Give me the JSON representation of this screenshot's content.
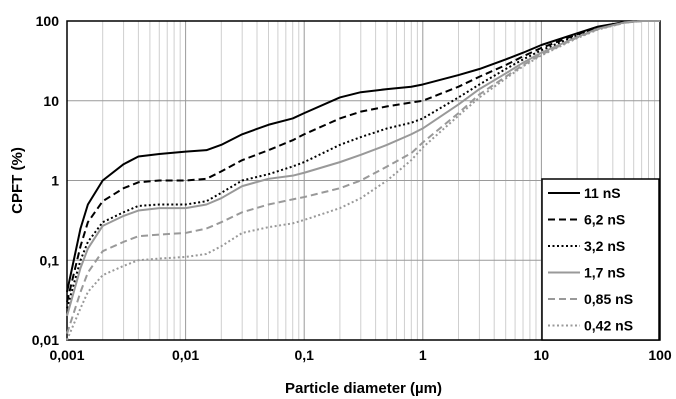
{
  "chart_data": {
    "type": "line",
    "xlabel": "Particle diameter (µm)",
    "ylabel": "CPFT (%)",
    "x_scale": "log",
    "y_scale": "log",
    "xlim": [
      0.001,
      100
    ],
    "ylim": [
      0.01,
      100
    ],
    "x_ticks": [
      "0,001",
      "0,01",
      "0,1",
      "1",
      "10",
      "100"
    ],
    "y_ticks": [
      "0,01",
      "0,1",
      "1",
      "10",
      "100"
    ],
    "grid": "vertical minor and major lines, horizontal major lines",
    "legend_position": "bottom-right",
    "series": [
      {
        "name": "11 nS",
        "color": "#000000",
        "dash": "solid",
        "points": [
          [
            0.001,
            0.04
          ],
          [
            0.0013,
            0.25
          ],
          [
            0.0015,
            0.5
          ],
          [
            0.002,
            1.0
          ],
          [
            0.003,
            1.6
          ],
          [
            0.004,
            2.0
          ],
          [
            0.006,
            2.15
          ],
          [
            0.01,
            2.3
          ],
          [
            0.015,
            2.4
          ],
          [
            0.02,
            2.8
          ],
          [
            0.03,
            3.8
          ],
          [
            0.05,
            5.0
          ],
          [
            0.08,
            6.0
          ],
          [
            0.1,
            7.0
          ],
          [
            0.2,
            11.0
          ],
          [
            0.3,
            12.8
          ],
          [
            0.5,
            14.0
          ],
          [
            0.8,
            15.0
          ],
          [
            1,
            16.0
          ],
          [
            2,
            21.0
          ],
          [
            3,
            25.0
          ],
          [
            5,
            33.0
          ],
          [
            7,
            40.0
          ],
          [
            10,
            50.0
          ],
          [
            20,
            70.0
          ],
          [
            30,
            85.0
          ],
          [
            50,
            97.0
          ],
          [
            70,
            100.0
          ],
          [
            100,
            100.0
          ]
        ]
      },
      {
        "name": "6,2 nS",
        "color": "#000000",
        "dash": "dashed",
        "points": [
          [
            0.001,
            0.03
          ],
          [
            0.0013,
            0.15
          ],
          [
            0.0015,
            0.3
          ],
          [
            0.002,
            0.55
          ],
          [
            0.003,
            0.8
          ],
          [
            0.004,
            0.95
          ],
          [
            0.006,
            1.0
          ],
          [
            0.01,
            1.0
          ],
          [
            0.015,
            1.05
          ],
          [
            0.02,
            1.3
          ],
          [
            0.03,
            1.8
          ],
          [
            0.05,
            2.4
          ],
          [
            0.08,
            3.2
          ],
          [
            0.1,
            3.8
          ],
          [
            0.2,
            6.0
          ],
          [
            0.3,
            7.3
          ],
          [
            0.5,
            8.5
          ],
          [
            0.8,
            9.5
          ],
          [
            1,
            10.0
          ],
          [
            2,
            15.0
          ],
          [
            3,
            20.0
          ],
          [
            5,
            28.0
          ],
          [
            7,
            36.0
          ],
          [
            10,
            46.0
          ],
          [
            20,
            68.0
          ],
          [
            30,
            83.0
          ],
          [
            50,
            97.0
          ],
          [
            70,
            100.0
          ],
          [
            100,
            100.0
          ]
        ]
      },
      {
        "name": "3,2 nS",
        "color": "#000000",
        "dash": "dotted",
        "points": [
          [
            0.001,
            0.025
          ],
          [
            0.0013,
            0.1
          ],
          [
            0.0015,
            0.17
          ],
          [
            0.002,
            0.3
          ],
          [
            0.003,
            0.4
          ],
          [
            0.004,
            0.48
          ],
          [
            0.006,
            0.5
          ],
          [
            0.01,
            0.5
          ],
          [
            0.015,
            0.55
          ],
          [
            0.02,
            0.7
          ],
          [
            0.03,
            1.0
          ],
          [
            0.05,
            1.2
          ],
          [
            0.08,
            1.5
          ],
          [
            0.1,
            1.7
          ],
          [
            0.2,
            2.8
          ],
          [
            0.3,
            3.5
          ],
          [
            0.5,
            4.5
          ],
          [
            0.8,
            5.3
          ],
          [
            1,
            6.0
          ],
          [
            2,
            11.0
          ],
          [
            3,
            16.0
          ],
          [
            5,
            25.0
          ],
          [
            7,
            33.0
          ],
          [
            10,
            43.0
          ],
          [
            20,
            66.0
          ],
          [
            30,
            82.0
          ],
          [
            50,
            96.0
          ],
          [
            70,
            100.0
          ],
          [
            100,
            100.0
          ]
        ]
      },
      {
        "name": "1,7 nS",
        "color": "#999999",
        "dash": "solid",
        "points": [
          [
            0.001,
            0.02
          ],
          [
            0.0013,
            0.08
          ],
          [
            0.0015,
            0.14
          ],
          [
            0.002,
            0.27
          ],
          [
            0.003,
            0.36
          ],
          [
            0.004,
            0.42
          ],
          [
            0.006,
            0.45
          ],
          [
            0.01,
            0.45
          ],
          [
            0.015,
            0.5
          ],
          [
            0.02,
            0.6
          ],
          [
            0.03,
            0.85
          ],
          [
            0.05,
            1.05
          ],
          [
            0.08,
            1.15
          ],
          [
            0.1,
            1.25
          ],
          [
            0.2,
            1.7
          ],
          [
            0.3,
            2.1
          ],
          [
            0.5,
            2.8
          ],
          [
            0.8,
            3.8
          ],
          [
            1,
            4.5
          ],
          [
            2,
            9.0
          ],
          [
            3,
            14.0
          ],
          [
            5,
            22.0
          ],
          [
            7,
            30.0
          ],
          [
            10,
            40.0
          ],
          [
            20,
            63.0
          ],
          [
            30,
            80.0
          ],
          [
            50,
            96.0
          ],
          [
            70,
            100.0
          ],
          [
            100,
            100.0
          ]
        ]
      },
      {
        "name": "0,85 nS",
        "color": "#999999",
        "dash": "dashed",
        "points": [
          [
            0.001,
            0.012
          ],
          [
            0.0013,
            0.04
          ],
          [
            0.0015,
            0.07
          ],
          [
            0.002,
            0.13
          ],
          [
            0.003,
            0.17
          ],
          [
            0.004,
            0.2
          ],
          [
            0.006,
            0.21
          ],
          [
            0.01,
            0.22
          ],
          [
            0.015,
            0.25
          ],
          [
            0.02,
            0.3
          ],
          [
            0.03,
            0.4
          ],
          [
            0.05,
            0.5
          ],
          [
            0.08,
            0.58
          ],
          [
            0.1,
            0.62
          ],
          [
            0.2,
            0.8
          ],
          [
            0.3,
            1.0
          ],
          [
            0.5,
            1.5
          ],
          [
            0.8,
            2.2
          ],
          [
            1,
            3.0
          ],
          [
            2,
            7.0
          ],
          [
            3,
            12.0
          ],
          [
            5,
            20.0
          ],
          [
            7,
            28.0
          ],
          [
            10,
            38.0
          ],
          [
            20,
            62.0
          ],
          [
            30,
            79.0
          ],
          [
            50,
            95.0
          ],
          [
            70,
            100.0
          ],
          [
            100,
            100.0
          ]
        ]
      },
      {
        "name": "0,42 nS",
        "color": "#999999",
        "dash": "dotted",
        "points": [
          [
            0.001,
            0.01
          ],
          [
            0.0013,
            0.025
          ],
          [
            0.0015,
            0.04
          ],
          [
            0.002,
            0.065
          ],
          [
            0.003,
            0.085
          ],
          [
            0.004,
            0.1
          ],
          [
            0.006,
            0.105
          ],
          [
            0.01,
            0.11
          ],
          [
            0.015,
            0.12
          ],
          [
            0.02,
            0.15
          ],
          [
            0.03,
            0.22
          ],
          [
            0.05,
            0.26
          ],
          [
            0.08,
            0.29
          ],
          [
            0.1,
            0.32
          ],
          [
            0.2,
            0.45
          ],
          [
            0.3,
            0.6
          ],
          [
            0.5,
            1.0
          ],
          [
            0.8,
            1.8
          ],
          [
            1,
            2.6
          ],
          [
            2,
            6.5
          ],
          [
            3,
            11.0
          ],
          [
            5,
            19.0
          ],
          [
            7,
            27.0
          ],
          [
            10,
            37.0
          ],
          [
            20,
            61.0
          ],
          [
            30,
            78.0
          ],
          [
            50,
            95.0
          ],
          [
            70,
            100.0
          ],
          [
            100,
            100.0
          ]
        ]
      }
    ]
  }
}
